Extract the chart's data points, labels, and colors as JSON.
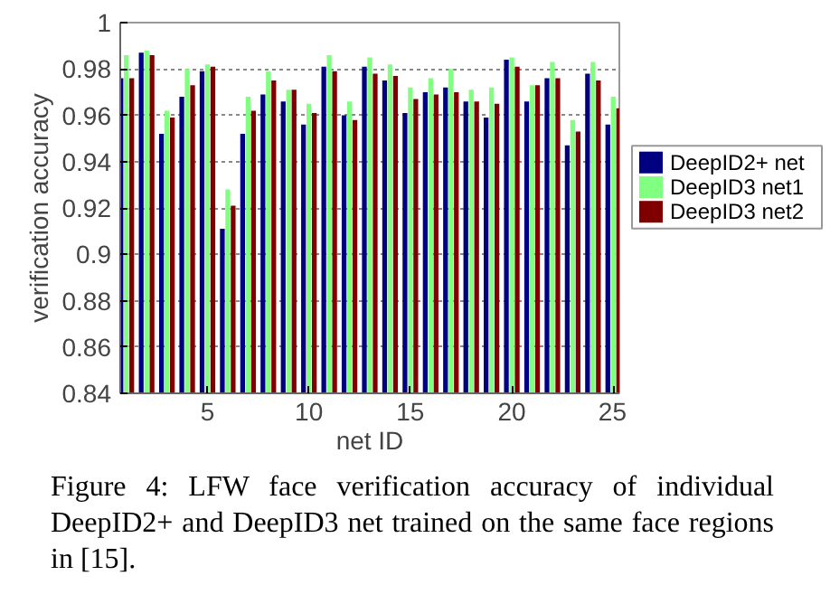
{
  "chart_data": {
    "type": "bar",
    "x": [
      1,
      2,
      3,
      4,
      5,
      6,
      7,
      8,
      9,
      10,
      11,
      12,
      13,
      14,
      15,
      16,
      17,
      18,
      19,
      20,
      21,
      22,
      23,
      24,
      25
    ],
    "series": [
      {
        "name": "DeepID2+ net",
        "color": "#000080",
        "values": [
          0.976,
          0.987,
          0.952,
          0.968,
          0.979,
          0.911,
          0.952,
          0.969,
          0.966,
          0.956,
          0.981,
          0.96,
          0.981,
          0.975,
          0.961,
          0.97,
          0.972,
          0.966,
          0.959,
          0.984,
          0.966,
          0.976,
          0.947,
          0.978,
          0.956
        ]
      },
      {
        "name": "DeepID3 net1",
        "color": "#80ff80",
        "values": [
          0.986,
          0.988,
          0.962,
          0.98,
          0.982,
          0.928,
          0.968,
          0.979,
          0.971,
          0.965,
          0.986,
          0.966,
          0.985,
          0.982,
          0.972,
          0.976,
          0.98,
          0.971,
          0.972,
          0.985,
          0.973,
          0.983,
          0.958,
          0.983,
          0.968
        ]
      },
      {
        "name": "DeepID3 net2",
        "color": "#800000",
        "values": [
          0.976,
          0.986,
          0.959,
          0.973,
          0.981,
          0.921,
          0.962,
          0.975,
          0.971,
          0.961,
          0.979,
          0.958,
          0.978,
          0.977,
          0.967,
          0.969,
          0.97,
          0.966,
          0.965,
          0.981,
          0.973,
          0.976,
          0.953,
          0.975,
          0.963
        ]
      }
    ],
    "xlim": [
      0.7,
      25.3
    ],
    "ylim": [
      0.84,
      1
    ],
    "xticks": [
      5,
      10,
      15,
      20,
      25
    ],
    "yticks": [
      0.84,
      0.86,
      0.88,
      0.9,
      0.92,
      0.94,
      0.96,
      0.98,
      1
    ],
    "xlabel": "net ID",
    "ylabel": "verification accuracy",
    "grid": "y",
    "legend": "right",
    "annotations": [
      "Figure 4:  LFW face verification accuracy of individual DeepID2+ and DeepID3 net trained on the same face regions in [15]."
    ]
  }
}
